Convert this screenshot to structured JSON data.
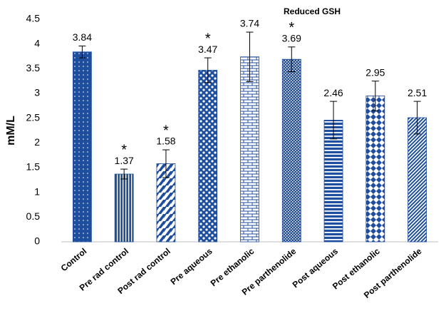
{
  "chart_data": {
    "type": "bar",
    "title": "Reduced GSH",
    "y_label": "mM/L",
    "categories": [
      "Control",
      "Pre rad control",
      "Post rad control",
      "Pre aqueous",
      "Pre ethanolic",
      "Pre parthenolide",
      "Post aqueous",
      "Post ethanolic",
      "Post parthenolide"
    ],
    "values": [
      3.84,
      1.37,
      1.58,
      3.47,
      3.74,
      3.69,
      2.46,
      2.95,
      2.51
    ],
    "errors": [
      0.12,
      0.1,
      0.28,
      0.25,
      0.5,
      0.25,
      0.38,
      0.3,
      0.33
    ],
    "annotations": [
      {
        "category": "Pre rad control",
        "text": "*"
      },
      {
        "category": "Post rad control",
        "text": "*"
      },
      {
        "category": "Pre aqueous",
        "text": "*"
      },
      {
        "category": "Pre parthenolide",
        "text": "*"
      }
    ],
    "color": "#1f4e9e",
    "ylim": [
      0,
      4.5
    ],
    "yticks": [
      0,
      0.5,
      1,
      1.5,
      2,
      2.5,
      3,
      3.5,
      4,
      4.5
    ],
    "grid": false
  }
}
